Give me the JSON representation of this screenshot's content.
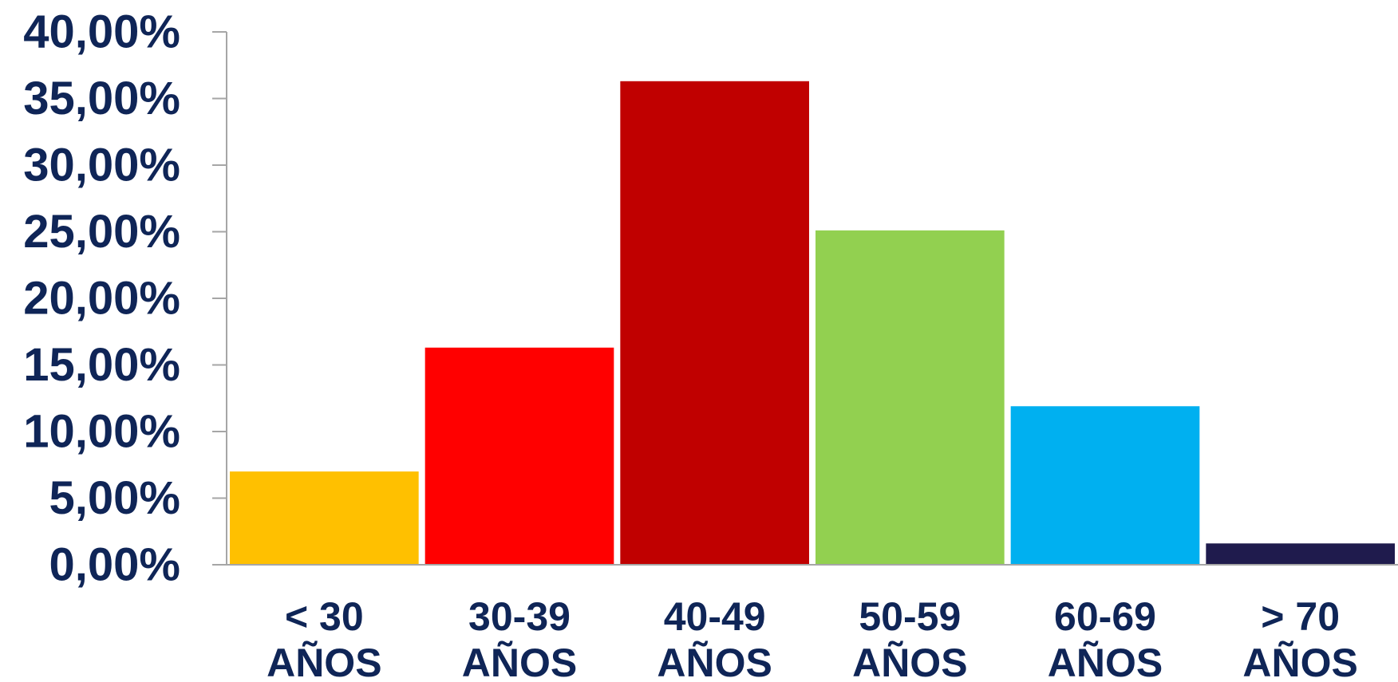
{
  "chart_data": {
    "type": "bar",
    "categories": [
      "< 30 AÑOS",
      "30-39 AÑOS",
      "40-49 AÑOS",
      "50-59 AÑOS",
      "60-69 AÑOS",
      "> 70 AÑOS"
    ],
    "category_lines": [
      [
        "< 30",
        "AÑOS"
      ],
      [
        "30-39",
        "AÑOS"
      ],
      [
        "40-49",
        "AÑOS"
      ],
      [
        "50-59",
        "AÑOS"
      ],
      [
        "60-69",
        "AÑOS"
      ],
      [
        "> 70",
        "AÑOS"
      ]
    ],
    "values": [
      7.0,
      16.3,
      36.3,
      25.1,
      11.9,
      1.6
    ],
    "bar_colors": [
      "#ffc000",
      "#ff0000",
      "#c00000",
      "#92d050",
      "#00b0f0",
      "#1f1b4d"
    ],
    "ylim": [
      0,
      40
    ],
    "yticks": [
      0,
      5,
      10,
      15,
      20,
      25,
      30,
      35,
      40
    ],
    "ytick_labels": [
      "0,00%",
      "5,00%",
      "10,00%",
      "15,00%",
      "20,00%",
      "25,00%",
      "30,00%",
      "35,00%",
      "40,00%"
    ],
    "title": "",
    "xlabel": "",
    "ylabel": "",
    "grid": false,
    "legend": "none"
  }
}
